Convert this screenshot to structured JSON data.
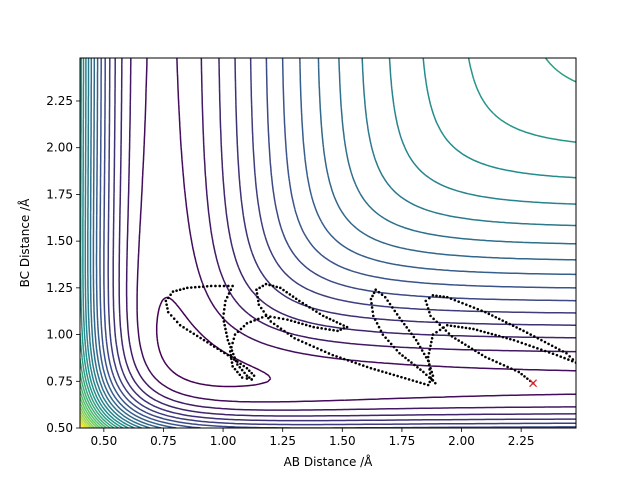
{
  "chart_data": {
    "type": "contour",
    "title": "",
    "xlabel": "AB Distance /Å",
    "ylabel": "BC Distance /Å",
    "xlim": [
      0.4,
      2.48
    ],
    "ylim": [
      0.5,
      2.48
    ],
    "xticks": [
      0.5,
      0.75,
      1.0,
      1.25,
      1.5,
      1.75,
      2.0,
      2.25
    ],
    "xtick_labels": [
      "0.50",
      "0.75",
      "1.00",
      "1.25",
      "1.50",
      "1.75",
      "2.00",
      "2.25"
    ],
    "yticks": [
      0.5,
      0.75,
      1.0,
      1.25,
      1.5,
      1.75,
      2.0,
      2.25
    ],
    "ytick_labels": [
      "0.50",
      "0.75",
      "1.00",
      "1.25",
      "1.50",
      "1.75",
      "2.00",
      "2.25"
    ],
    "grid": false,
    "colormap": "viridis",
    "colormap_stops": [
      "#440154",
      "#3b528b",
      "#21918c",
      "#5ec962",
      "#fde725"
    ],
    "contour_levels": 28,
    "trajectory": {
      "color": "#000000",
      "marker": "dots",
      "points": [
        [
          2.3,
          0.74
        ],
        [
          2.24,
          0.8
        ],
        [
          2.1,
          0.88
        ],
        [
          1.96,
          0.99
        ],
        [
          1.87,
          1.1
        ],
        [
          1.85,
          1.18
        ],
        [
          1.88,
          1.21
        ],
        [
          1.94,
          1.2
        ],
        [
          2.1,
          1.12
        ],
        [
          2.26,
          1.02
        ],
        [
          2.44,
          0.9
        ],
        [
          2.48,
          0.85
        ],
        [
          2.4,
          0.89
        ],
        [
          2.22,
          0.97
        ],
        [
          2.05,
          1.03
        ],
        [
          1.94,
          1.05
        ],
        [
          1.88,
          1.0
        ],
        [
          1.86,
          0.88
        ],
        [
          1.87,
          0.77
        ],
        [
          1.89,
          0.74
        ],
        [
          1.84,
          0.8
        ],
        [
          1.74,
          0.9
        ],
        [
          1.67,
          1.0
        ],
        [
          1.63,
          1.1
        ],
        [
          1.62,
          1.19
        ],
        [
          1.64,
          1.24
        ],
        [
          1.68,
          1.2
        ],
        [
          1.74,
          1.09
        ],
        [
          1.81,
          0.97
        ],
        [
          1.86,
          0.86
        ],
        [
          1.88,
          0.78
        ],
        [
          1.86,
          0.73
        ],
        [
          1.78,
          0.76
        ],
        [
          1.62,
          0.82
        ],
        [
          1.46,
          0.89
        ],
        [
          1.3,
          0.98
        ],
        [
          1.2,
          1.07
        ],
        [
          1.15,
          1.16
        ],
        [
          1.14,
          1.24
        ],
        [
          1.18,
          1.27
        ],
        [
          1.24,
          1.25
        ],
        [
          1.32,
          1.18
        ],
        [
          1.42,
          1.1
        ],
        [
          1.52,
          1.04
        ],
        [
          1.48,
          1.02
        ],
        [
          1.38,
          1.04
        ],
        [
          1.27,
          1.08
        ],
        [
          1.18,
          1.1
        ],
        [
          1.1,
          1.06
        ],
        [
          1.05,
          1.0
        ],
        [
          1.03,
          0.91
        ],
        [
          1.04,
          0.83
        ],
        [
          1.08,
          0.77
        ],
        [
          1.12,
          0.76
        ],
        [
          1.1,
          0.78
        ],
        [
          1.06,
          0.84
        ],
        [
          1.02,
          0.97
        ],
        [
          1.0,
          1.09
        ],
        [
          1.01,
          1.18
        ],
        [
          1.04,
          1.26
        ],
        [
          0.95,
          1.26
        ],
        [
          0.85,
          1.25
        ],
        [
          0.79,
          1.23
        ],
        [
          0.76,
          1.18
        ],
        [
          0.77,
          1.12
        ],
        [
          0.82,
          1.05
        ],
        [
          0.92,
          0.97
        ],
        [
          1.02,
          0.89
        ],
        [
          1.1,
          0.82
        ],
        [
          1.13,
          0.78
        ],
        [
          1.12,
          0.76
        ]
      ]
    },
    "start_marker": {
      "x": 2.3,
      "y": 0.74,
      "symbol": "×",
      "color": "#d62728"
    }
  }
}
